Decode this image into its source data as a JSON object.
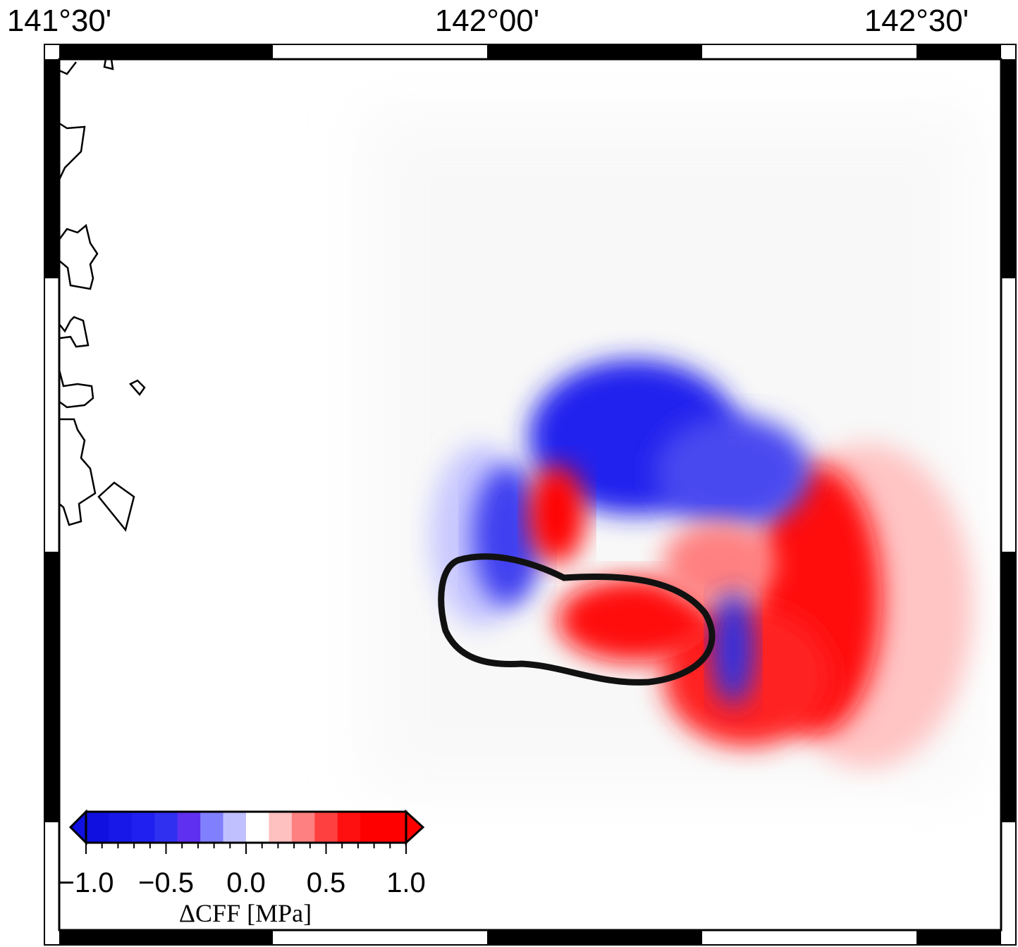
{
  "map": {
    "lon_labels": [
      "141°30'",
      "142°00'",
      "142°30'"
    ],
    "colorbar": {
      "title": "ΔCFF [MPa]",
      "range": [
        -1,
        1
      ],
      "ticks": [
        {
          "value": -1,
          "label": "−1.0"
        },
        {
          "value": -0.5,
          "label": "−0.5"
        },
        {
          "value": 0,
          "label": "0.0"
        },
        {
          "value": 0.5,
          "label": "0.5"
        },
        {
          "value": 1,
          "label": "1.0"
        }
      ],
      "minor_ticks": [
        -0.9,
        -0.8,
        -0.7,
        -0.6,
        -0.4,
        -0.3,
        -0.2,
        -0.1,
        0.1,
        0.2,
        0.3,
        0.4,
        0.6,
        0.7,
        0.8,
        0.9
      ],
      "colors": [
        "#1010e0",
        "#1818e8",
        "#2020f0",
        "#3030f0",
        "#6030f0",
        "#8080ff",
        "#c0c0ff",
        "#ffffff",
        "#ffc0c0",
        "#ff8080",
        "#ff4040",
        "#ff1010",
        "#ff0000",
        "#ff0000"
      ]
    }
  }
}
